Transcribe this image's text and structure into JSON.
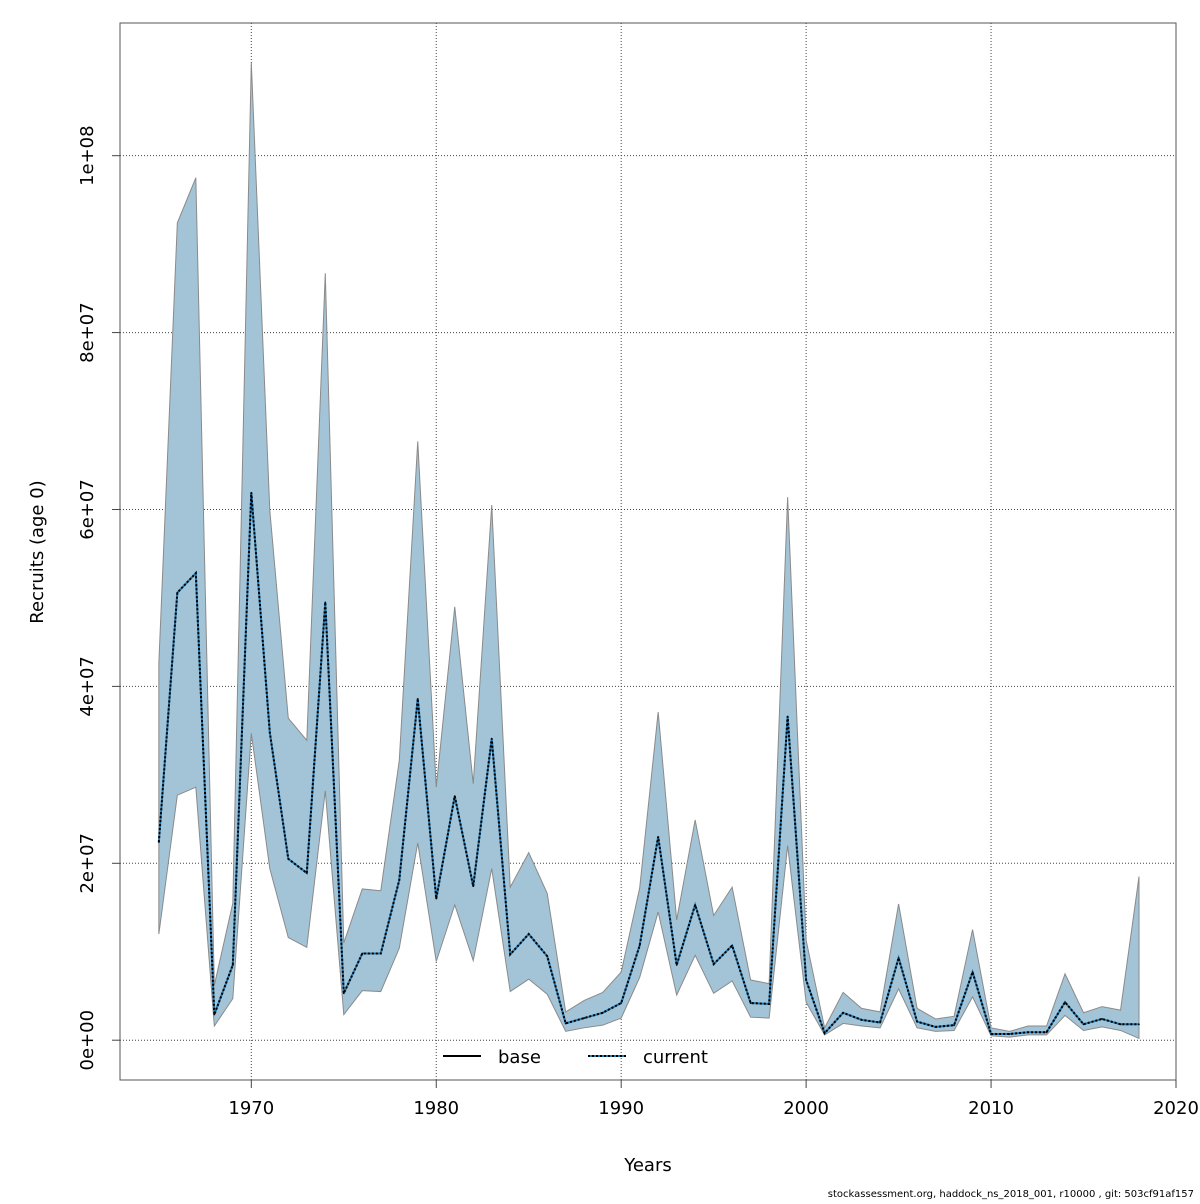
{
  "chart_data": {
    "type": "area",
    "title": "",
    "xlabel": "Years",
    "ylabel": "Recruits (age 0)",
    "xlim": [
      1962.9,
      2020.0
    ],
    "ylim": [
      -4500000,
      115000000
    ],
    "x_ticks": [
      1970,
      1980,
      1990,
      2000,
      2010,
      2020
    ],
    "x_tick_labels": [
      "1970",
      "1980",
      "1990",
      "2000",
      "2010",
      "2020"
    ],
    "y_ticks": [
      0,
      20000000,
      40000000,
      60000000,
      80000000,
      100000000
    ],
    "y_tick_labels": [
      "0e+00",
      "2e+07",
      "4e+07",
      "6e+07",
      "8e+07",
      "1e+08"
    ],
    "grid": true,
    "legend_position": "bottom-center",
    "colors": {
      "band": "#a3c4d6",
      "band_border": "#8a8a8a",
      "base": "#000000",
      "current": "#1f78b4"
    },
    "x": [
      1965,
      1966,
      1967,
      1968,
      1969,
      1970,
      1971,
      1972,
      1973,
      1974,
      1975,
      1976,
      1977,
      1978,
      1979,
      1980,
      1981,
      1982,
      1983,
      1984,
      1985,
      1986,
      1987,
      1988,
      1989,
      1990,
      1991,
      1992,
      1993,
      1994,
      1995,
      1996,
      1997,
      1998,
      1999,
      2000,
      2001,
      2002,
      2003,
      2004,
      2005,
      2006,
      2007,
      2008,
      2009,
      2010,
      2011,
      2012,
      2013,
      2014,
      2015,
      2016,
      2017,
      2018
    ],
    "series": [
      {
        "name": "base",
        "style": "solid",
        "values": [
          22400000.0,
          50600000.0,
          52800000.0,
          2900000.0,
          8500000.0,
          61900000.0,
          34800000.0,
          20500000.0,
          18900000.0,
          49500000.0,
          5300000.0,
          9800000.0,
          9800000.0,
          18100000.0,
          38600000.0,
          16000000.0,
          27600000.0,
          17400000.0,
          34100000.0,
          9700000.0,
          12000000.0,
          9500000.0,
          1900000.0,
          2500000.0,
          3100000.0,
          4200000.0,
          10700000.0,
          23000000.0,
          8500000.0,
          15300000.0,
          8600000.0,
          10700000.0,
          4200000.0,
          4100000.0,
          36600000.0,
          6800000.0,
          800000.0,
          3100000.0,
          2300000.0,
          2000000.0,
          9300000.0,
          2100000.0,
          1500000.0,
          1700000.0,
          7700000.0,
          700000.0,
          700000.0,
          900000.0,
          900000.0,
          4300000.0,
          1800000.0,
          2400000.0,
          1800000.0,
          1800000.0
        ]
      },
      {
        "name": "current",
        "style": "dotted",
        "values": [
          22400000.0,
          50600000.0,
          52800000.0,
          2900000.0,
          8500000.0,
          61900000.0,
          34800000.0,
          20500000.0,
          18900000.0,
          49500000.0,
          5300000.0,
          9800000.0,
          9800000.0,
          18100000.0,
          38600000.0,
          16000000.0,
          27600000.0,
          17400000.0,
          34100000.0,
          9700000.0,
          12000000.0,
          9500000.0,
          1900000.0,
          2500000.0,
          3100000.0,
          4200000.0,
          10700000.0,
          23000000.0,
          8500000.0,
          15300000.0,
          8600000.0,
          10700000.0,
          4200000.0,
          4100000.0,
          36600000.0,
          6800000.0,
          800000.0,
          3100000.0,
          2300000.0,
          2000000.0,
          9300000.0,
          2100000.0,
          1500000.0,
          1700000.0,
          7700000.0,
          700000.0,
          700000.0,
          900000.0,
          900000.0,
          4300000.0,
          1800000.0,
          2400000.0,
          1800000.0,
          1800000.0
        ]
      }
    ],
    "band_upper": [
      42600000.0,
      92400000.0,
      97500000.0,
      6200000.0,
      15500000.0,
      110500000.0,
      59900000.0,
      36400000.0,
      33900000.0,
      86700000.0,
      11000000.0,
      17100000.0,
      16900000.0,
      31600000.0,
      67700000.0,
      28600000.0,
      49000000.0,
      29000000.0,
      60500000.0,
      17300000.0,
      21200000.0,
      16600000.0,
      3200000.0,
      4500000.0,
      5400000.0,
      7700000.0,
      17200000.0,
      37100000.0,
      13600000.0,
      24900000.0,
      14100000.0,
      17300000.0,
      6800000.0,
      6400000.0,
      61400000.0,
      11300000.0,
      1400000.0,
      5400000.0,
      3600000.0,
      3200000.0,
      15400000.0,
      3600000.0,
      2400000.0,
      2700000.0,
      12500000.0,
      1400000.0,
      1000000.0,
      1600000.0,
      1600000.0,
      7500000.0,
      3100000.0,
      3800000.0,
      3400000.0,
      18500000.0
    ],
    "band_lower": [
      12000000.0,
      27700000.0,
      28600000.0,
      1600000.0,
      4700000.0,
      34700000.0,
      19400000.0,
      11600000.0,
      10500000.0,
      28200000.0,
      2900000.0,
      5600000.0,
      5500000.0,
      10400000.0,
      22300000.0,
      8900000.0,
      15300000.0,
      9000000.0,
      19400000.0,
      5500000.0,
      6900000.0,
      5200000.0,
      1000000.0,
      1400000.0,
      1700000.0,
      2500000.0,
      7100000.0,
      14500000.0,
      5100000.0,
      9600000.0,
      5300000.0,
      6700000.0,
      2600000.0,
      2500000.0,
      22000000.0,
      4300000.0,
      600000.0,
      1900000.0,
      1600000.0,
      1400000.0,
      5800000.0,
      1400000.0,
      1000000.0,
      1100000.0,
      4900000.0,
      500000.0,
      350000.0,
      600000.0,
      600000.0,
      2800000.0,
      1100000.0,
      1500000.0,
      1100000.0,
      200000.0
    ]
  },
  "footer": "stockassessment.org, haddock_ns_2018_001, r10000 , git: 503cf91af157"
}
